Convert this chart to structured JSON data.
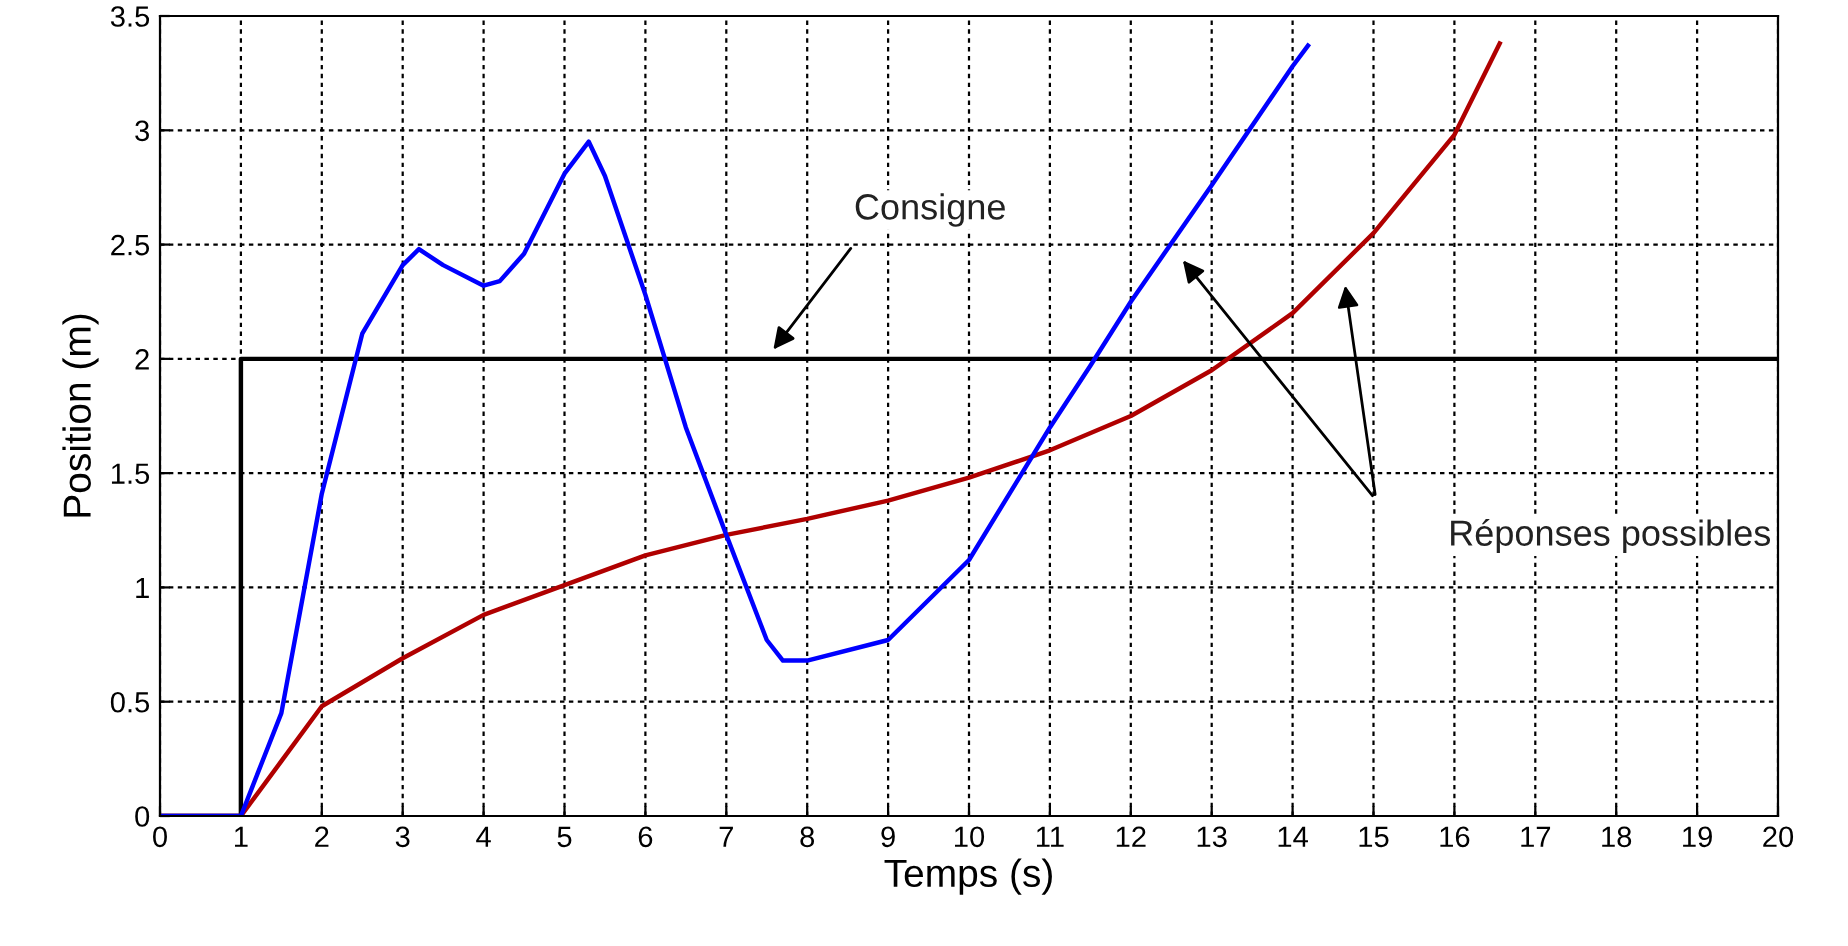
{
  "chart_data": {
    "type": "line",
    "xlabel": "Temps (s)",
    "ylabel": "Position (m)",
    "xlim": [
      0,
      20
    ],
    "ylim": [
      0,
      3.5
    ],
    "xticks": [
      0,
      1,
      2,
      3,
      4,
      5,
      6,
      7,
      8,
      9,
      10,
      11,
      12,
      13,
      14,
      15,
      16,
      17,
      18,
      19,
      20
    ],
    "yticks": [
      0,
      0.5,
      1,
      1.5,
      2,
      2.5,
      3,
      3.5
    ],
    "grid": true,
    "line_style": "solid",
    "marker": "none",
    "series": [
      {
        "color": "#000000",
        "type": "step",
        "x": [
          0,
          1,
          20
        ],
        "values": [
          0,
          2,
          2
        ]
      },
      {
        "color": "#b00000",
        "x": [
          0,
          1,
          1.5,
          2,
          3,
          4,
          5,
          6,
          7,
          8,
          9,
          10,
          11,
          12,
          13,
          14,
          15,
          16,
          16.56
        ],
        "values": [
          0,
          0,
          0.24,
          0.48,
          0.69,
          0.88,
          1.01,
          1.14,
          1.23,
          1.3,
          1.38,
          1.48,
          1.6,
          1.75,
          1.95,
          2.2,
          2.55,
          2.98,
          3.38
        ]
      },
      {
        "color": "#0000ff",
        "x": [
          0,
          1,
          1.5,
          2,
          2.5,
          3,
          3.2,
          3.5,
          4,
          4.2,
          4.5,
          5,
          5.3,
          5.5,
          6,
          6.5,
          7,
          7.5,
          7.7,
          8,
          9,
          10,
          11,
          11.5,
          12,
          13,
          14,
          14.19
        ],
        "values": [
          0,
          0,
          0.45,
          1.41,
          2.11,
          2.41,
          2.48,
          2.41,
          2.32,
          2.34,
          2.46,
          2.81,
          2.95,
          2.8,
          2.28,
          1.7,
          1.23,
          0.77,
          0.68,
          0.68,
          0.77,
          1.12,
          1.7,
          1.97,
          2.25,
          2.76,
          3.28,
          3.37
        ]
      }
    ],
    "annotations": [
      "Consigne",
      "Réponses possibles"
    ]
  }
}
